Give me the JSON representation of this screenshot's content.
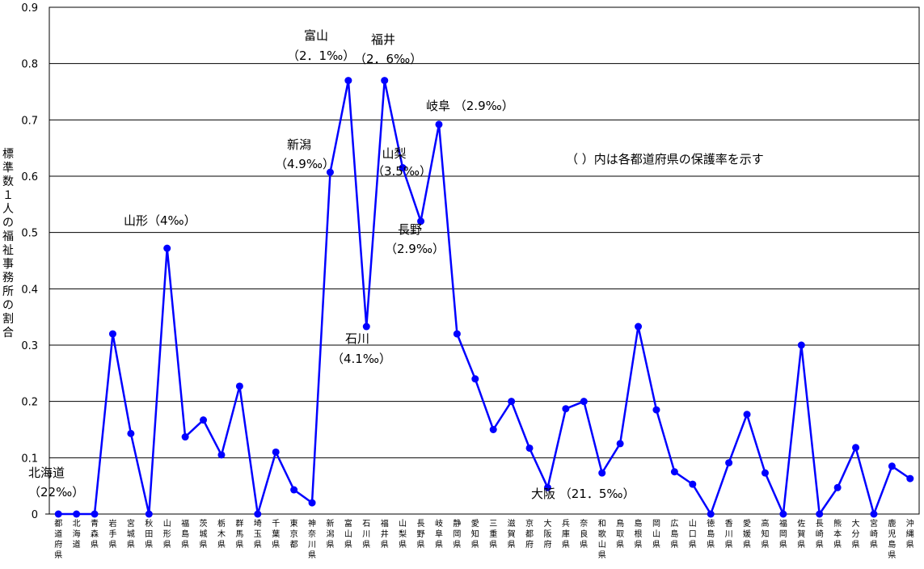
{
  "chart_data": {
    "type": "line",
    "ylabel": "標準数１人の福祉事務所の割合",
    "ylim": [
      0,
      0.9
    ],
    "yticks": [
      "0",
      "0.1",
      "0.2",
      "0.3",
      "0.4",
      "0.5",
      "0.6",
      "0.7",
      "0.8",
      "0.9"
    ],
    "grid": true,
    "categories": [
      "都道府県",
      "北海道",
      "青森県",
      "岩手県",
      "宮城県",
      "秋田県",
      "山形県",
      "福島県",
      "茨城県",
      "栃木県",
      "群馬県",
      "埼玉県",
      "千葉県",
      "東京都",
      "神奈川県",
      "新潟県",
      "富山県",
      "石川県",
      "福井県",
      "山梨県",
      "長野県",
      "岐阜県",
      "静岡県",
      "愛知県",
      "三重県",
      "滋賀県",
      "京都府",
      "大阪府",
      "兵庫県",
      "奈良県",
      "和歌山県",
      "鳥取県",
      "島根県",
      "岡山県",
      "広島県",
      "山口県",
      "徳島県",
      "香川県",
      "愛媛県",
      "高知県",
      "福岡県",
      "佐賀県",
      "長崎県",
      "熊本県",
      "大分県",
      "宮崎県",
      "鹿児島県",
      "沖縄県"
    ],
    "values": [
      0,
      0,
      0,
      0.32,
      0.143,
      0,
      0.472,
      0.137,
      0.167,
      0.105,
      0.227,
      0,
      0.11,
      0.043,
      0.02,
      0.607,
      0.77,
      0.333,
      0.77,
      0.615,
      0.52,
      0.692,
      0.32,
      0.24,
      0.15,
      0.2,
      0.117,
      0.047,
      0.187,
      0.2,
      0.073,
      0.125,
      0.333,
      0.185,
      0.075,
      0.053,
      0,
      0.091,
      0.177,
      0.073,
      0,
      0.3,
      0,
      0.047,
      0.118,
      0,
      0.085,
      0.063
    ],
    "series_color": "#0000ff",
    "annotations": [
      {
        "lines": [
          "北海道",
          "（22‰）"
        ]
      },
      {
        "lines": [
          "山形（4‰）"
        ]
      },
      {
        "lines": [
          "富山",
          "（2．1‰）"
        ]
      },
      {
        "lines": [
          "福井",
          "（2．6‰）"
        ]
      },
      {
        "lines": [
          "新潟",
          "（4.9‰）"
        ]
      },
      {
        "lines": [
          "山梨",
          "（3.5‰）"
        ]
      },
      {
        "lines": [
          "長野",
          "（2.9‰）"
        ]
      },
      {
        "lines": [
          "岐阜 （2.9‰）"
        ]
      },
      {
        "lines": [
          "石川",
          "（4.1‰）"
        ]
      },
      {
        "lines": [
          "大阪 （21．5‰）"
        ]
      },
      {
        "lines": [
          "（ ）内は各都道府県の保護率を示す"
        ]
      }
    ]
  }
}
